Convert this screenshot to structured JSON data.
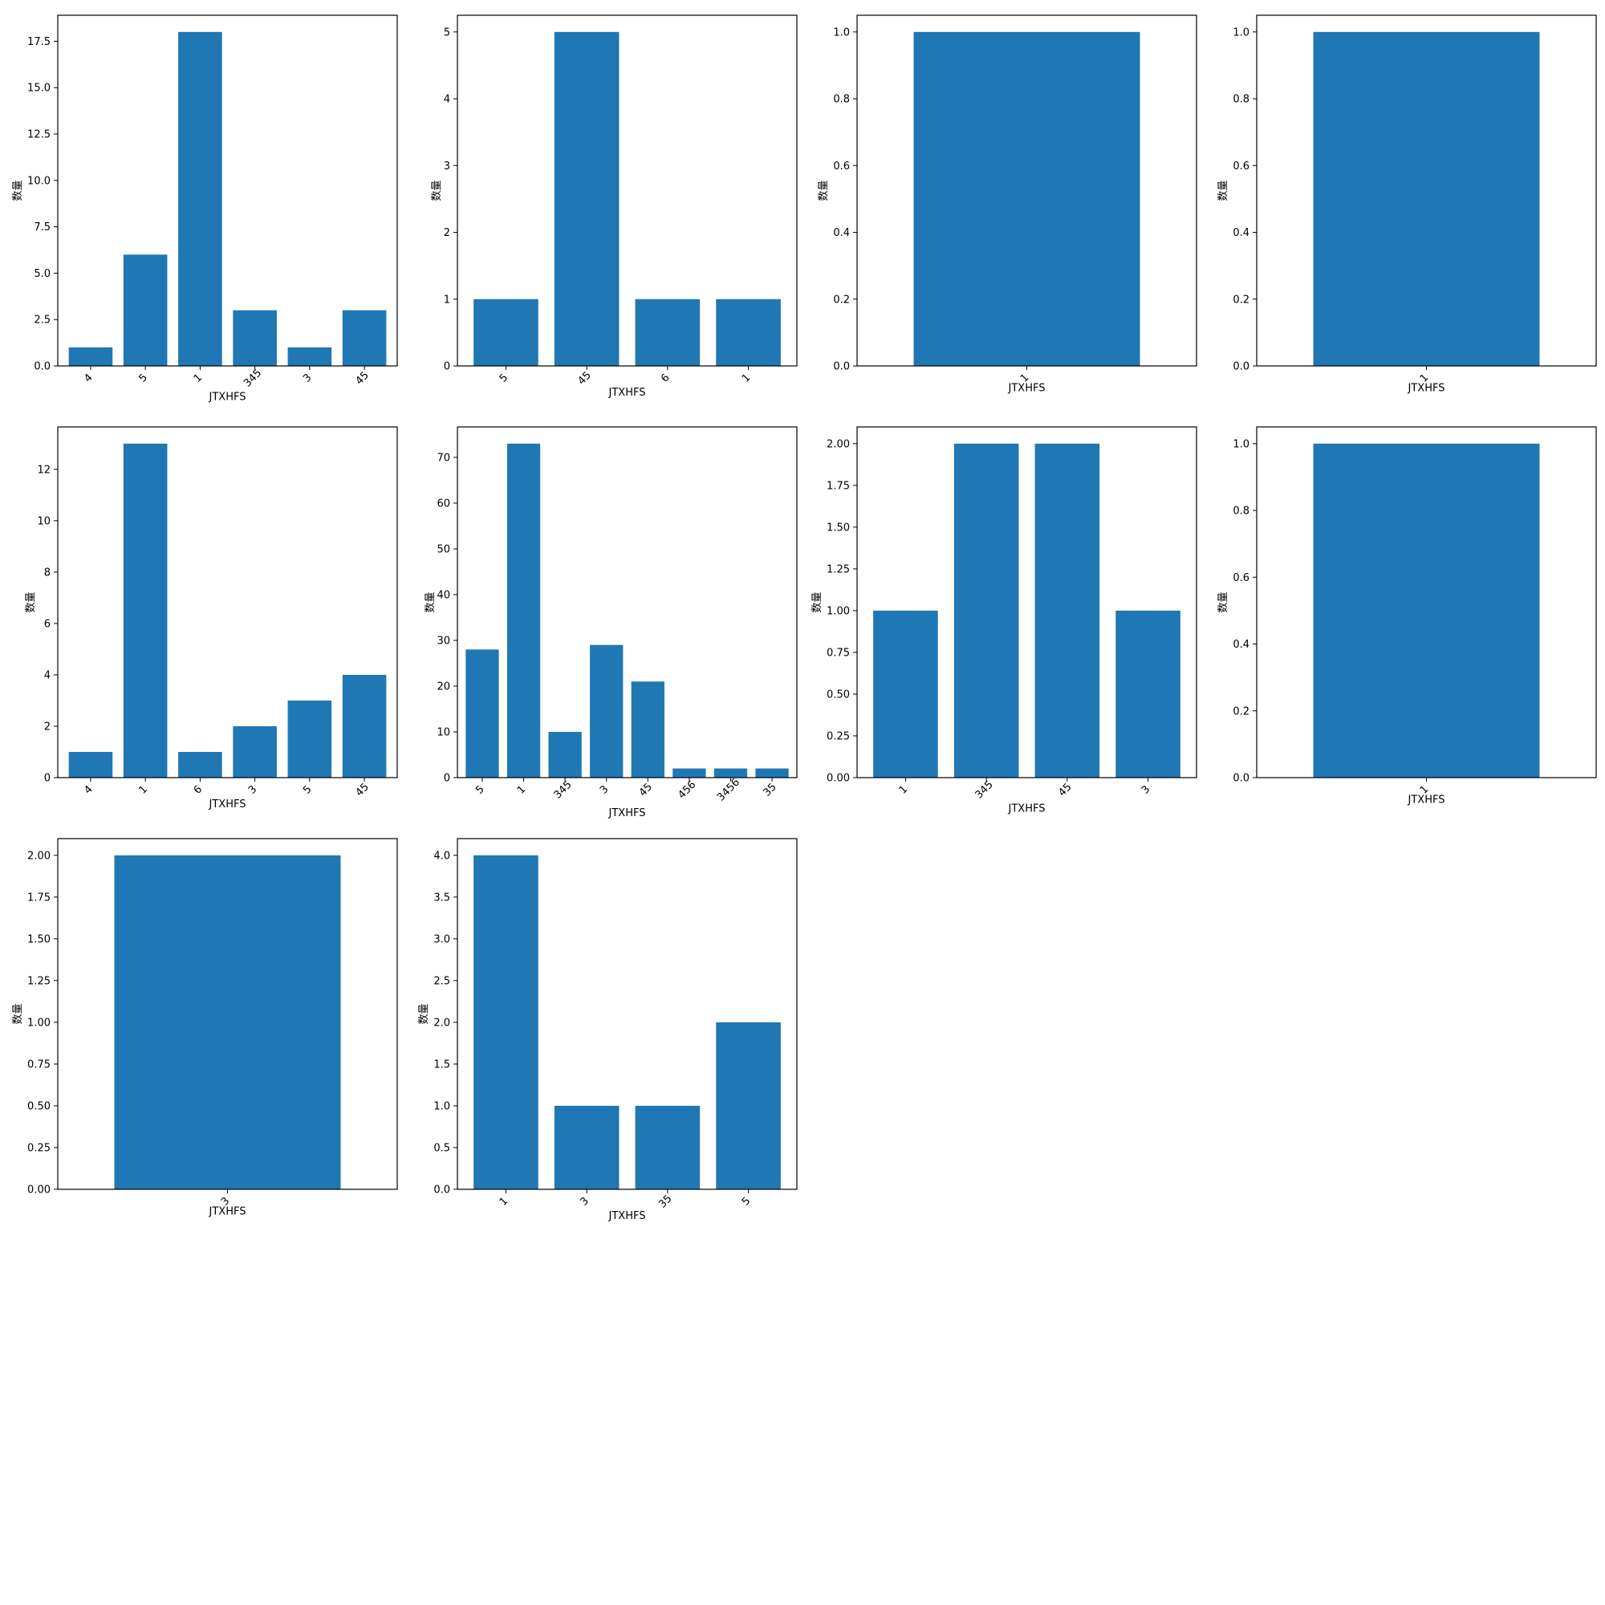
{
  "chart_data": [
    {
      "type": "bar",
      "title": "",
      "xlabel": "JTXHFS",
      "ylabel": "数量",
      "categories": [
        "4",
        "5",
        "1",
        "345",
        "3",
        "45"
      ],
      "values": [
        1,
        6,
        18,
        3,
        1,
        3
      ],
      "ylim": [
        0,
        18.9
      ],
      "yticks": [
        0,
        2.5,
        5,
        7.5,
        10,
        12.5,
        15,
        17.5
      ],
      "ytick_labels": [
        "0.0",
        "2.5",
        "5.0",
        "7.5",
        "10.0",
        "12.5",
        "15.0",
        "17.5"
      ],
      "xtick_rotation": -45,
      "grid": false,
      "color": "#1f77b4"
    },
    {
      "type": "bar",
      "title": "",
      "xlabel": "JTXHFS",
      "ylabel": "数量",
      "categories": [
        "5",
        "45",
        "6",
        "1"
      ],
      "values": [
        1,
        5,
        1,
        1
      ],
      "ylim": [
        0,
        5.25
      ],
      "yticks": [
        0,
        1,
        2,
        3,
        4,
        5
      ],
      "ytick_labels": [
        "0",
        "1",
        "2",
        "3",
        "4",
        "5"
      ],
      "xtick_rotation": -45,
      "grid": false,
      "color": "#1f77b4"
    },
    {
      "type": "bar",
      "title": "",
      "xlabel": "JTXHFS",
      "ylabel": "数量",
      "categories": [
        "1"
      ],
      "values": [
        1
      ],
      "ylim": [
        0,
        1.05
      ],
      "yticks": [
        0,
        0.2,
        0.4,
        0.6,
        0.8,
        1.0
      ],
      "ytick_labels": [
        "0.0",
        "0.2",
        "0.4",
        "0.6",
        "0.8",
        "1.0"
      ],
      "xtick_rotation": -45,
      "grid": false,
      "color": "#1f77b4"
    },
    {
      "type": "bar",
      "title": "",
      "xlabel": "JTXHFS",
      "ylabel": "数量",
      "categories": [
        "1"
      ],
      "values": [
        1
      ],
      "ylim": [
        0,
        1.05
      ],
      "yticks": [
        0,
        0.2,
        0.4,
        0.6,
        0.8,
        1.0
      ],
      "ytick_labels": [
        "0.0",
        "0.2",
        "0.4",
        "0.6",
        "0.8",
        "1.0"
      ],
      "xtick_rotation": -45,
      "grid": false,
      "color": "#1f77b4"
    },
    {
      "type": "bar",
      "title": "",
      "xlabel": "JTXHFS",
      "ylabel": "数量",
      "categories": [
        "4",
        "1",
        "6",
        "3",
        "5",
        "45"
      ],
      "values": [
        1,
        13,
        1,
        2,
        3,
        4
      ],
      "ylim": [
        0,
        13.65
      ],
      "yticks": [
        0,
        2,
        4,
        6,
        8,
        10,
        12
      ],
      "ytick_labels": [
        "0",
        "2",
        "4",
        "6",
        "8",
        "10",
        "12"
      ],
      "xtick_rotation": -45,
      "grid": false,
      "color": "#1f77b4"
    },
    {
      "type": "bar",
      "title": "",
      "xlabel": "JTXHFS",
      "ylabel": "数量",
      "categories": [
        "5",
        "1",
        "345",
        "3",
        "45",
        "456",
        "3456",
        "35"
      ],
      "values": [
        28,
        73,
        10,
        29,
        21,
        2,
        2,
        2
      ],
      "ylim": [
        0,
        76.65
      ],
      "yticks": [
        0,
        10,
        20,
        30,
        40,
        50,
        60,
        70
      ],
      "ytick_labels": [
        "0",
        "10",
        "20",
        "30",
        "40",
        "50",
        "60",
        "70"
      ],
      "xtick_rotation": -45,
      "grid": false,
      "color": "#1f77b4"
    },
    {
      "type": "bar",
      "title": "",
      "xlabel": "JTXHFS",
      "ylabel": "数量",
      "categories": [
        "1",
        "345",
        "45",
        "3"
      ],
      "values": [
        1,
        2,
        2,
        1
      ],
      "ylim": [
        0,
        2.1
      ],
      "yticks": [
        0,
        0.25,
        0.5,
        0.75,
        1.0,
        1.25,
        1.5,
        1.75,
        2.0
      ],
      "ytick_labels": [
        "0.00",
        "0.25",
        "0.50",
        "0.75",
        "1.00",
        "1.25",
        "1.50",
        "1.75",
        "2.00"
      ],
      "xtick_rotation": -45,
      "grid": false,
      "color": "#1f77b4"
    },
    {
      "type": "bar",
      "title": "",
      "xlabel": "JTXHFS",
      "ylabel": "数量",
      "categories": [
        "1"
      ],
      "values": [
        1
      ],
      "ylim": [
        0,
        1.05
      ],
      "yticks": [
        0,
        0.2,
        0.4,
        0.6,
        0.8,
        1.0
      ],
      "ytick_labels": [
        "0.0",
        "0.2",
        "0.4",
        "0.6",
        "0.8",
        "1.0"
      ],
      "xtick_rotation": -45,
      "grid": false,
      "color": "#1f77b4"
    },
    {
      "type": "bar",
      "title": "",
      "xlabel": "JTXHFS",
      "ylabel": "数量",
      "categories": [
        "3"
      ],
      "values": [
        2
      ],
      "ylim": [
        0,
        2.1
      ],
      "yticks": [
        0,
        0.25,
        0.5,
        0.75,
        1.0,
        1.25,
        1.5,
        1.75,
        2.0
      ],
      "ytick_labels": [
        "0.00",
        "0.25",
        "0.50",
        "0.75",
        "1.00",
        "1.25",
        "1.50",
        "1.75",
        "2.00"
      ],
      "xtick_rotation": -45,
      "grid": false,
      "color": "#1f77b4"
    },
    {
      "type": "bar",
      "title": "",
      "xlabel": "JTXHFS",
      "ylabel": "数量",
      "categories": [
        "1",
        "3",
        "35",
        "5"
      ],
      "values": [
        4,
        1,
        1,
        2
      ],
      "ylim": [
        0,
        4.2
      ],
      "yticks": [
        0,
        0.5,
        1.0,
        1.5,
        2.0,
        2.5,
        3.0,
        3.5,
        4.0
      ],
      "ytick_labels": [
        "0.0",
        "0.5",
        "1.0",
        "1.5",
        "2.0",
        "2.5",
        "3.0",
        "3.5",
        "4.0"
      ],
      "xtick_rotation": -45,
      "grid": false,
      "color": "#1f77b4"
    }
  ]
}
